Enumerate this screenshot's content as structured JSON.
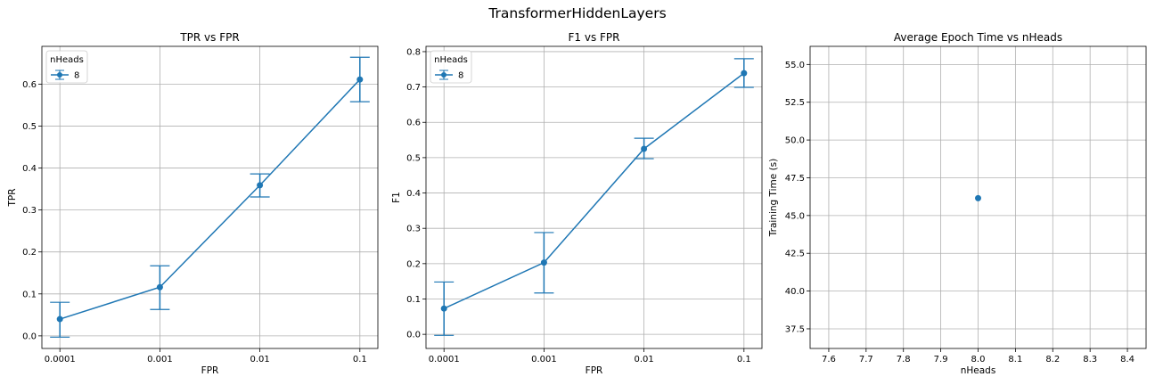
{
  "figure": {
    "suptitle": "TransformerHiddenLayers"
  },
  "style": {
    "series_color": "#1f77b4",
    "grid_color": "#b0b0b0"
  },
  "chart_data": [
    {
      "type": "line",
      "title": "TPR vs FPR",
      "xlabel": "FPR",
      "ylabel": "TPR",
      "x_categories": [
        "0.0001",
        "0.001",
        "0.01",
        "0.1"
      ],
      "ylim": [
        -0.03,
        0.69
      ],
      "yticks": [
        0.0,
        0.1,
        0.2,
        0.3,
        0.4,
        0.5,
        0.6
      ],
      "yticks_labels": [
        "0.0",
        "0.1",
        "0.2",
        "0.3",
        "0.4",
        "0.5",
        "0.6"
      ],
      "grid": true,
      "legend": {
        "title": "nHeads",
        "placement": "top-left",
        "entries": [
          "8"
        ]
      },
      "series": [
        {
          "name": "8",
          "values": [
            0.04,
            0.116,
            0.359,
            0.611
          ],
          "err_low": [
            -0.003,
            0.063,
            0.331,
            0.558
          ],
          "err_high": [
            0.08,
            0.167,
            0.386,
            0.664
          ]
        }
      ]
    },
    {
      "type": "line",
      "title": "F1 vs FPR",
      "xlabel": "FPR",
      "ylabel": "F1",
      "x_categories": [
        "0.0001",
        "0.001",
        "0.01",
        "0.1"
      ],
      "ylim": [
        -0.04,
        0.815
      ],
      "yticks": [
        0.0,
        0.1,
        0.2,
        0.3,
        0.4,
        0.5,
        0.6,
        0.7,
        0.8
      ],
      "yticks_labels": [
        "0.0",
        "0.1",
        "0.2",
        "0.3",
        "0.4",
        "0.5",
        "0.6",
        "0.7",
        "0.8"
      ],
      "grid": true,
      "legend": {
        "title": "nHeads",
        "placement": "top-left",
        "entries": [
          "8"
        ]
      },
      "series": [
        {
          "name": "8",
          "values": [
            0.073,
            0.203,
            0.525,
            0.739
          ],
          "err_low": [
            -0.003,
            0.117,
            0.497,
            0.699
          ],
          "err_high": [
            0.148,
            0.288,
            0.555,
            0.78
          ]
        }
      ]
    },
    {
      "type": "scatter",
      "title": "Average Epoch Time vs nHeads",
      "xlabel": "nHeads",
      "ylabel": "Training Time (s)",
      "xlim": [
        7.55,
        8.45
      ],
      "ylim": [
        36.2,
        56.2
      ],
      "xticks": [
        7.6,
        7.7,
        7.8,
        7.9,
        8.0,
        8.1,
        8.2,
        8.3,
        8.4
      ],
      "xticks_labels": [
        "7.6",
        "7.7",
        "7.8",
        "7.9",
        "8.0",
        "8.1",
        "8.2",
        "8.3",
        "8.4"
      ],
      "yticks": [
        37.5,
        40.0,
        42.5,
        45.0,
        47.5,
        50.0,
        52.5,
        55.0
      ],
      "yticks_labels": [
        "37.5",
        "40.0",
        "42.5",
        "45.0",
        "47.5",
        "50.0",
        "52.5",
        "55.0"
      ],
      "grid": true,
      "points": [
        {
          "x": 8.0,
          "y": 46.15
        }
      ]
    }
  ]
}
